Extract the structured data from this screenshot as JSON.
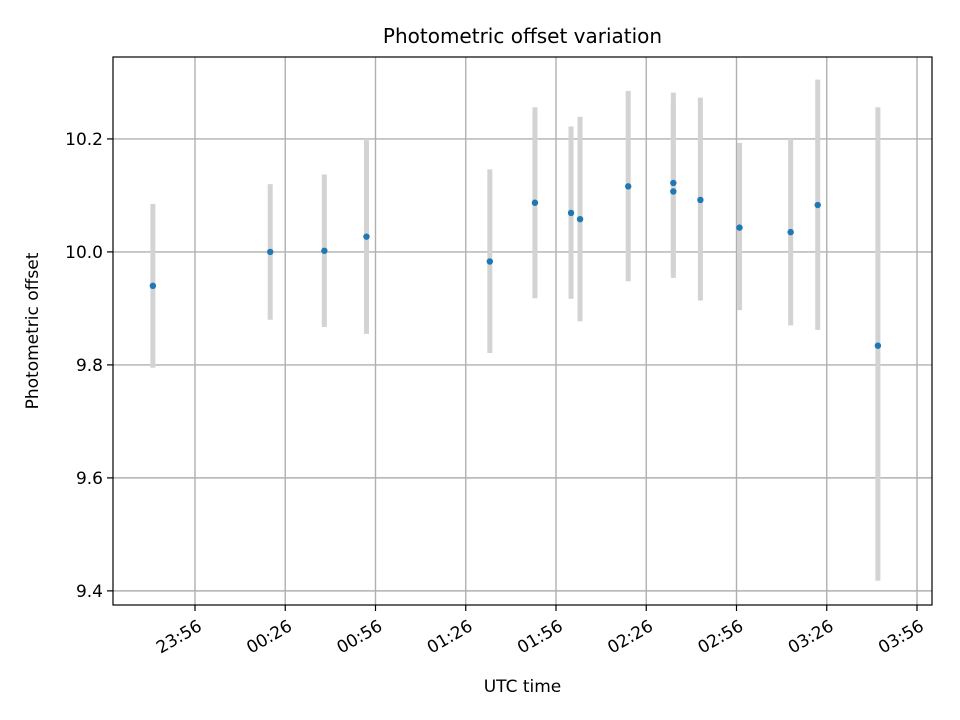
{
  "chart_data": {
    "type": "scatter",
    "title": "Photometric offset variation",
    "xlabel": "UTC time",
    "ylabel": "Photometric offset",
    "x_ticks": [
      "23:56",
      "00:26",
      "00:56",
      "01:26",
      "01:56",
      "02:26",
      "02:56",
      "03:26",
      "03:56"
    ],
    "y_ticks": [
      "9.4",
      "9.6",
      "9.8",
      "10.0",
      "10.2"
    ],
    "ylim": [
      9.375,
      10.345
    ],
    "grid": true,
    "x_axis": "UTC time (hh:mm), spanning midnight",
    "points": [
      {
        "x": "23:42",
        "y": 9.94,
        "low": 9.795,
        "high": 10.085
      },
      {
        "x": "00:21",
        "y": 10.0,
        "low": 9.88,
        "high": 10.12
      },
      {
        "x": "00:39",
        "y": 10.002,
        "low": 9.867,
        "high": 10.137
      },
      {
        "x": "00:53",
        "y": 10.027,
        "low": 9.855,
        "high": 10.2
      },
      {
        "x": "01:34",
        "y": 9.983,
        "low": 9.821,
        "high": 10.146
      },
      {
        "x": "01:49",
        "y": 10.087,
        "low": 9.918,
        "high": 10.256
      },
      {
        "x": "02:01",
        "y": 10.069,
        "low": 9.917,
        "high": 10.222
      },
      {
        "x": "02:04",
        "y": 10.058,
        "low": 9.877,
        "high": 10.239
      },
      {
        "x": "02:20",
        "y": 10.116,
        "low": 9.948,
        "high": 10.285
      },
      {
        "x": "02:35",
        "y": 10.122,
        "low": 9.963,
        "high": 10.282
      },
      {
        "x": "02:35",
        "y": 10.107,
        "low": 9.954,
        "high": 10.261
      },
      {
        "x": "02:44",
        "y": 10.092,
        "low": 9.914,
        "high": 10.273
      },
      {
        "x": "02:57",
        "y": 10.043,
        "low": 9.897,
        "high": 10.193
      },
      {
        "x": "03:14",
        "y": 10.035,
        "low": 9.87,
        "high": 10.2
      },
      {
        "x": "03:23",
        "y": 10.083,
        "low": 9.862,
        "high": 10.305
      },
      {
        "x": "03:43",
        "y": 9.834,
        "low": 9.418,
        "high": 10.256
      }
    ],
    "colors": {
      "point": "#1f77b4",
      "errorbar": "#d3d3d3",
      "grid": "#b0b0b0",
      "axes": "#000000"
    }
  }
}
